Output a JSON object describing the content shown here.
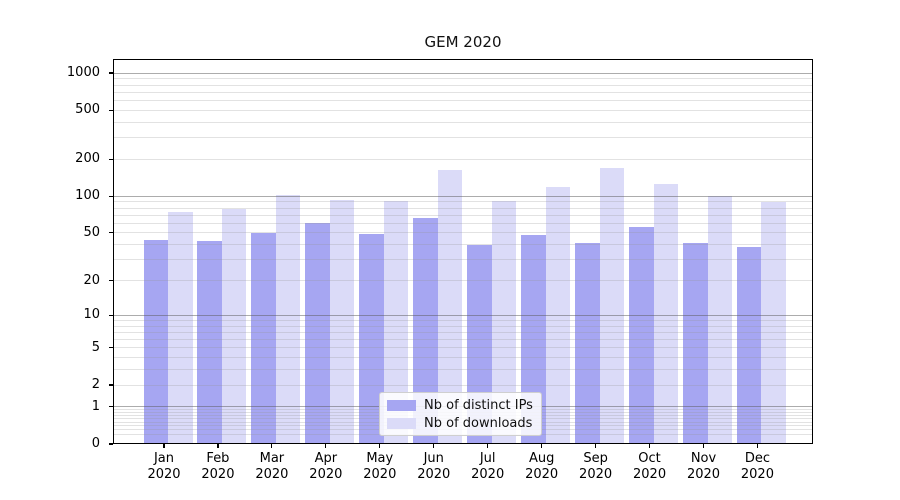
{
  "title": "GEM 2020",
  "legend": {
    "items": [
      {
        "label": "Nb of distinct IPs",
        "color": "#a6a6f2"
      },
      {
        "label": "Nb of downloads",
        "color": "#dbdbf8"
      }
    ]
  },
  "axes": {
    "y_tick_labels": [
      "0",
      "1",
      "2",
      "5",
      "10",
      "20",
      "50",
      "100",
      "200",
      "500",
      "1000"
    ],
    "x_tick_labels": [
      "Jan 2020",
      "Feb 2020",
      "Mar 2020",
      "Apr 2020",
      "May 2020",
      "Jun 2020",
      "Jul 2020",
      "Aug 2020",
      "Sep 2020",
      "Oct 2020",
      "Nov 2020",
      "Dec 2020"
    ]
  },
  "chart_data": {
    "type": "bar",
    "title": "GEM 2020",
    "categories": [
      "Jan 2020",
      "Feb 2020",
      "Mar 2020",
      "Apr 2020",
      "May 2020",
      "Jun 2020",
      "Jul 2020",
      "Aug 2020",
      "Sep 2020",
      "Oct 2020",
      "Nov 2020",
      "Dec 2020"
    ],
    "series": [
      {
        "name": "Nb of distinct IPs",
        "color": "#a6a6f2",
        "values": [
          44,
          43,
          50,
          60,
          49,
          66,
          40,
          48,
          41,
          56,
          41,
          38
        ]
      },
      {
        "name": "Nb of downloads",
        "color": "#dbdbf8",
        "values": [
          75,
          79,
          103,
          94,
          91,
          163,
          92,
          120,
          170,
          125,
          101,
          89
        ]
      }
    ],
    "xlabel": "",
    "ylabel": "",
    "y_scale": "log1p",
    "y_ticks": [
      0,
      1,
      2,
      5,
      10,
      20,
      50,
      100,
      200,
      500,
      1000
    ],
    "grid_major_at": [
      1,
      10,
      100,
      1000
    ],
    "ylim": [
      0,
      1300
    ],
    "grid": "both",
    "legend_position": "lower center"
  }
}
